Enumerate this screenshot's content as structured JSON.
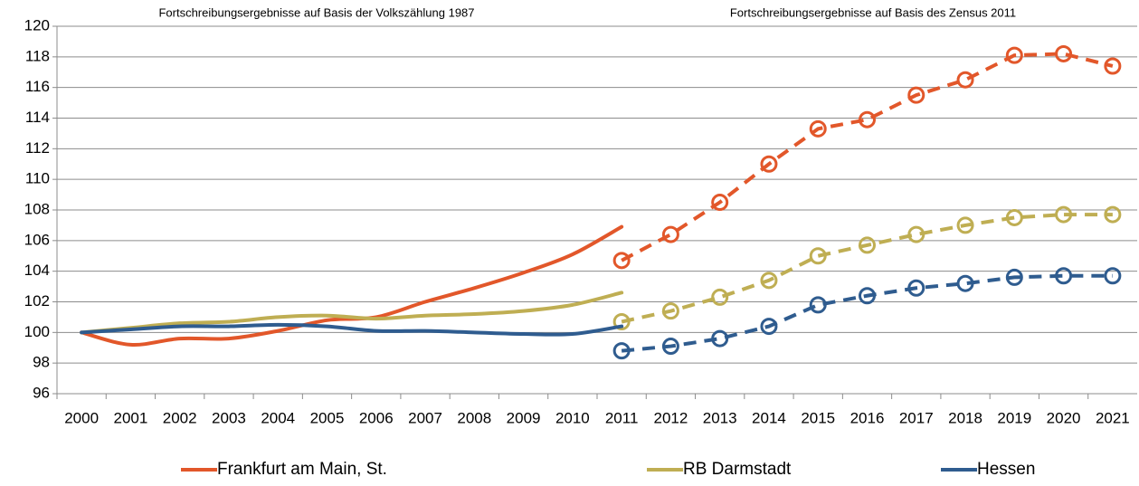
{
  "chart_data": {
    "type": "line",
    "annotations": [
      "Fortschreibungsergebnisse auf Basis der Volkszählung 1987",
      "Fortschreibungsergebnisse auf Basis des Zensus 2011"
    ],
    "categories": [
      "2000",
      "2001",
      "2002",
      "2003",
      "2004",
      "2005",
      "2006",
      "2007",
      "2008",
      "2009",
      "2010",
      "2011",
      "2012",
      "2013",
      "2014",
      "2015",
      "2016",
      "2017",
      "2018",
      "2019",
      "2020",
      "2021"
    ],
    "series": [
      {
        "name": "Frankfurt am Main, St.",
        "color": "#e2572a",
        "values": [
          100,
          99.2,
          99.6,
          99.6,
          100.1,
          100.8,
          101.0,
          102.0,
          102.9,
          103.9,
          105.1,
          106.9,
          null,
          null,
          null,
          null,
          null,
          null,
          null,
          null,
          null,
          null
        ],
        "values_census": [
          null,
          null,
          null,
          null,
          null,
          null,
          null,
          null,
          null,
          null,
          null,
          104.7,
          106.4,
          108.5,
          111.0,
          113.3,
          113.9,
          115.5,
          116.5,
          118.1,
          118.2,
          117.4
        ]
      },
      {
        "name": "RB Darmstadt",
        "color": "#bfae53",
        "values": [
          100,
          100.3,
          100.6,
          100.7,
          101.0,
          101.1,
          100.9,
          101.1,
          101.2,
          101.4,
          101.8,
          102.6,
          null,
          null,
          null,
          null,
          null,
          null,
          null,
          null,
          null,
          null
        ],
        "values_census": [
          null,
          null,
          null,
          null,
          null,
          null,
          null,
          null,
          null,
          null,
          null,
          100.7,
          101.4,
          102.3,
          103.4,
          105.0,
          105.7,
          106.4,
          107.0,
          107.5,
          107.7,
          107.7
        ]
      },
      {
        "name": "Hessen",
        "color": "#2f5c8f",
        "values": [
          100,
          100.2,
          100.4,
          100.4,
          100.5,
          100.4,
          100.1,
          100.1,
          100.0,
          99.9,
          99.9,
          100.4,
          null,
          null,
          null,
          null,
          null,
          null,
          null,
          null,
          null,
          null
        ],
        "values_census": [
          null,
          null,
          null,
          null,
          null,
          null,
          null,
          null,
          null,
          null,
          null,
          98.8,
          99.1,
          99.6,
          100.4,
          101.8,
          102.4,
          102.9,
          103.2,
          103.6,
          103.7,
          103.7
        ]
      }
    ],
    "ylim": [
      96,
      120
    ],
    "yticks": [
      96,
      98,
      100,
      102,
      104,
      106,
      108,
      110,
      112,
      114,
      116,
      118,
      120
    ],
    "grid": true
  }
}
